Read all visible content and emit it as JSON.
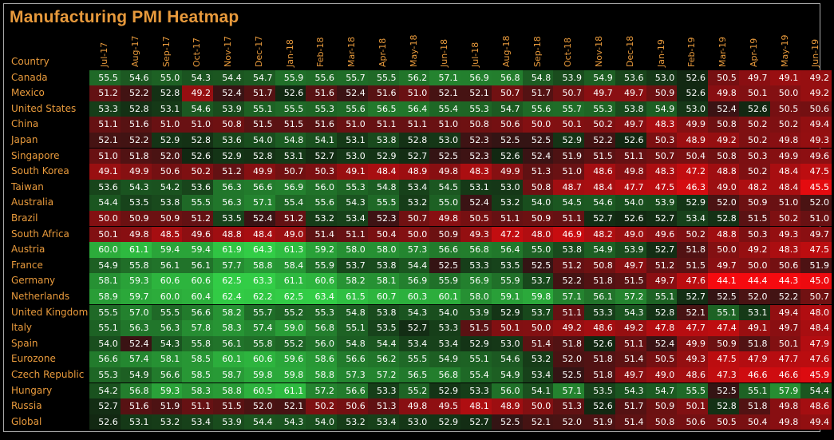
{
  "title": "Manufacturing PMI Heatmap",
  "chart_data": {
    "type": "heatmap",
    "title": "Manufacturing PMI Heatmap",
    "row_header": "Country",
    "columns": [
      "Jul-17",
      "Aug-17",
      "Sep-17",
      "Oct-17",
      "Nov-17",
      "Dec-17",
      "Jan-18",
      "Feb-18",
      "Mar-18",
      "Apr-18",
      "May-18",
      "Jun-18",
      "Jul-18",
      "Aug-18",
      "Sep-18",
      "Oct-18",
      "Nov-18",
      "Dec-18",
      "Jan-19",
      "Feb-19",
      "Mar-19",
      "Apr-19",
      "May-19",
      "Jun-19"
    ],
    "rows": [
      {
        "name": "Canada",
        "values": [
          55.5,
          54.6,
          55.0,
          54.3,
          54.4,
          54.7,
          55.9,
          55.6,
          55.7,
          55.5,
          56.2,
          57.1,
          56.9,
          56.8,
          54.8,
          53.9,
          54.9,
          53.6,
          53.0,
          52.6,
          50.5,
          49.7,
          49.1,
          49.2
        ]
      },
      {
        "name": "Mexico",
        "values": [
          51.2,
          52.2,
          52.8,
          49.2,
          52.4,
          51.7,
          52.6,
          51.6,
          52.4,
          51.6,
          51.0,
          52.1,
          52.1,
          50.7,
          51.7,
          50.7,
          49.7,
          49.7,
          50.9,
          52.6,
          49.8,
          50.1,
          50.0,
          49.2
        ]
      },
      {
        "name": "United States",
        "values": [
          53.3,
          52.8,
          53.1,
          54.6,
          53.9,
          55.1,
          55.5,
          55.3,
          55.6,
          56.5,
          56.4,
          55.4,
          55.3,
          54.7,
          55.6,
          55.7,
          55.3,
          53.8,
          54.9,
          53.0,
          52.4,
          52.6,
          50.5,
          50.6
        ]
      },
      {
        "name": "China",
        "values": [
          51.1,
          51.6,
          51.0,
          51.0,
          50.8,
          51.5,
          51.5,
          51.6,
          51.0,
          51.1,
          51.1,
          51.0,
          50.8,
          50.6,
          50.0,
          50.1,
          50.2,
          49.7,
          48.3,
          49.9,
          50.8,
          50.2,
          50.2,
          49.4
        ]
      },
      {
        "name": "Japan",
        "values": [
          52.1,
          52.2,
          52.9,
          52.8,
          53.6,
          54.0,
          54.8,
          54.1,
          53.1,
          53.8,
          52.8,
          53.0,
          52.3,
          52.5,
          52.5,
          52.9,
          52.2,
          52.6,
          50.3,
          48.9,
          49.2,
          50.2,
          49.8,
          49.3
        ]
      },
      {
        "name": "Singapore",
        "values": [
          51.0,
          51.8,
          52.0,
          52.6,
          52.9,
          52.8,
          53.1,
          52.7,
          53.0,
          52.9,
          52.7,
          52.5,
          52.3,
          52.6,
          52.4,
          51.9,
          51.5,
          51.1,
          50.7,
          50.4,
          50.8,
          50.3,
          49.9,
          49.6
        ]
      },
      {
        "name": "South Korea",
        "values": [
          49.1,
          49.9,
          50.6,
          50.2,
          51.2,
          49.9,
          50.7,
          50.3,
          49.1,
          48.4,
          48.9,
          49.8,
          48.3,
          49.9,
          51.3,
          51.0,
          48.6,
          49.8,
          48.3,
          47.2,
          48.8,
          50.2,
          48.4,
          47.5
        ]
      },
      {
        "name": "Taiwan",
        "values": [
          53.6,
          54.3,
          54.2,
          53.6,
          56.3,
          56.6,
          56.9,
          56.0,
          55.3,
          54.8,
          53.4,
          54.5,
          53.1,
          53.0,
          50.8,
          48.7,
          48.4,
          47.7,
          47.5,
          46.3,
          49.0,
          48.2,
          48.4,
          45.5
        ]
      },
      {
        "name": "Australia",
        "values": [
          54.4,
          53.5,
          53.8,
          55.5,
          56.3,
          57.1,
          55.4,
          55.6,
          54.3,
          55.5,
          53.2,
          55.0,
          52.4,
          53.2,
          54.0,
          54.5,
          54.6,
          54.0,
          53.9,
          52.9,
          52.0,
          50.9,
          51.0,
          52.0
        ]
      },
      {
        "name": "Brazil",
        "values": [
          50.0,
          50.9,
          50.9,
          51.2,
          53.5,
          52.4,
          51.2,
          53.2,
          53.4,
          52.3,
          50.7,
          49.8,
          50.5,
          51.1,
          50.9,
          51.1,
          52.7,
          52.6,
          52.7,
          53.4,
          52.8,
          51.5,
          50.2,
          51.0
        ]
      },
      {
        "name": "South Africa",
        "values": [
          50.1,
          49.8,
          48.5,
          49.6,
          48.8,
          48.4,
          49.0,
          51.4,
          51.1,
          50.4,
          50.0,
          50.9,
          49.3,
          47.2,
          48.0,
          46.9,
          48.2,
          49.0,
          49.6,
          50.2,
          48.8,
          50.3,
          49.3,
          49.7
        ]
      },
      {
        "name": "Austria",
        "values": [
          60.0,
          61.1,
          59.4,
          59.4,
          61.9,
          64.3,
          61.3,
          59.2,
          58.0,
          58.0,
          57.3,
          56.6,
          56.8,
          56.4,
          55.0,
          53.8,
          54.9,
          53.9,
          52.7,
          51.8,
          50.0,
          49.2,
          48.3,
          47.5
        ]
      },
      {
        "name": "France",
        "values": [
          54.9,
          55.8,
          56.1,
          56.1,
          57.7,
          58.8,
          58.4,
          55.9,
          53.7,
          53.8,
          54.4,
          52.5,
          53.3,
          53.5,
          52.5,
          51.2,
          50.8,
          49.7,
          51.2,
          51.5,
          49.7,
          50.0,
          50.6,
          51.9
        ]
      },
      {
        "name": "Germany",
        "values": [
          58.1,
          59.3,
          60.6,
          60.6,
          62.5,
          63.3,
          61.1,
          60.6,
          58.2,
          58.1,
          56.9,
          55.9,
          56.9,
          55.9,
          53.7,
          52.2,
          51.8,
          51.5,
          49.7,
          47.6,
          44.1,
          44.4,
          44.3,
          45.0
        ]
      },
      {
        "name": "Netherlands",
        "values": [
          58.9,
          59.7,
          60.0,
          60.4,
          62.4,
          62.2,
          62.5,
          63.4,
          61.5,
          60.7,
          60.3,
          60.1,
          58.0,
          59.1,
          59.8,
          57.1,
          56.1,
          57.2,
          55.1,
          52.7,
          52.5,
          52.0,
          52.2,
          50.7
        ]
      },
      {
        "name": "United Kingdom",
        "values": [
          55.5,
          57.0,
          55.5,
          56.6,
          58.2,
          55.7,
          55.2,
          55.3,
          54.8,
          53.8,
          54.3,
          54.0,
          53.9,
          52.9,
          53.7,
          51.1,
          53.3,
          54.3,
          52.8,
          52.1,
          55.1,
          53.1,
          49.4,
          48.0
        ]
      },
      {
        "name": "Italy",
        "values": [
          55.1,
          56.3,
          56.3,
          57.8,
          58.3,
          57.4,
          59.0,
          56.8,
          55.1,
          53.5,
          52.7,
          53.3,
          51.5,
          50.1,
          50.0,
          49.2,
          48.6,
          49.2,
          47.8,
          47.7,
          47.4,
          49.1,
          49.7,
          48.4
        ]
      },
      {
        "name": "Spain",
        "values": [
          54.0,
          52.4,
          54.3,
          55.8,
          56.1,
          55.8,
          55.2,
          56.0,
          54.8,
          54.4,
          53.4,
          53.4,
          52.9,
          53.0,
          51.4,
          51.8,
          52.6,
          51.1,
          52.4,
          49.9,
          50.9,
          51.8,
          50.1,
          47.9
        ]
      },
      {
        "name": "Eurozone",
        "values": [
          56.6,
          57.4,
          58.1,
          58.5,
          60.1,
          60.6,
          59.6,
          58.6,
          56.6,
          56.2,
          55.5,
          54.9,
          55.1,
          54.6,
          53.2,
          52.0,
          51.8,
          51.4,
          50.5,
          49.3,
          47.5,
          47.9,
          47.7,
          47.6
        ]
      },
      {
        "name": "Czech Republic",
        "values": [
          55.3,
          54.9,
          56.6,
          58.5,
          58.7,
          59.8,
          59.8,
          58.8,
          57.3,
          57.2,
          56.5,
          56.8,
          55.4,
          54.9,
          53.4,
          52.5,
          51.8,
          49.7,
          49.0,
          48.6,
          47.3,
          46.6,
          46.6,
          45.9
        ]
      },
      {
        "name": "Hungary",
        "values": [
          54.2,
          56.8,
          59.3,
          58.3,
          58.8,
          60.5,
          61.1,
          57.2,
          56.6,
          53.3,
          55.2,
          52.9,
          53.3,
          56.0,
          54.1,
          57.1,
          53.5,
          54.3,
          54.7,
          55.5,
          52.5,
          55.1,
          57.9,
          54.4
        ]
      },
      {
        "name": "Russia",
        "values": [
          52.7,
          51.6,
          51.9,
          51.1,
          51.5,
          52.0,
          52.1,
          50.2,
          50.6,
          51.3,
          49.8,
          49.5,
          48.1,
          48.9,
          50.0,
          51.3,
          52.6,
          51.7,
          50.9,
          50.1,
          52.8,
          51.8,
          49.8,
          48.6
        ]
      },
      {
        "name": "Global",
        "values": [
          52.6,
          53.1,
          53.2,
          53.4,
          53.9,
          54.4,
          54.3,
          54.0,
          53.2,
          53.4,
          53.0,
          52.9,
          52.7,
          52.5,
          52.1,
          52.0,
          51.9,
          51.4,
          50.8,
          50.6,
          50.5,
          50.4,
          49.8,
          49.4
        ]
      }
    ],
    "color_scale": {
      "low": "#ff0000",
      "mid": "#000000",
      "high": "#28c040"
    }
  },
  "colors": {
    "background": "#000000",
    "label": "#e89a3c",
    "value_text": "#ffffff"
  }
}
